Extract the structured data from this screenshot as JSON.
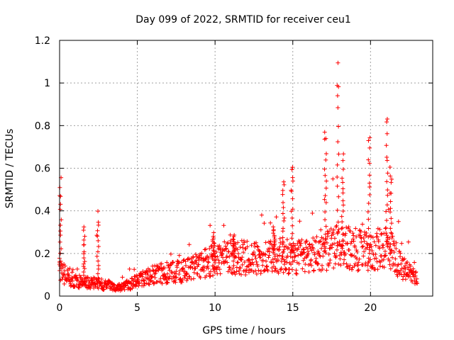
{
  "chart_data": {
    "type": "scatter",
    "title": "Day 099 of 2022, SRMTID for receiver ceu1",
    "xlabel": "GPS time / hours",
    "ylabel": "SRMTID / TECUs",
    "xlim": [
      0,
      24
    ],
    "ylim": [
      0,
      1.2
    ],
    "xticks": [
      0,
      5,
      10,
      15,
      20
    ],
    "xtick_labels": [
      "0",
      "5",
      "10",
      "15",
      "20"
    ],
    "yticks": [
      0,
      0.2,
      0.4,
      0.6,
      0.8,
      1.0,
      1.2
    ],
    "ytick_labels": [
      "0",
      "0.2",
      "0.4",
      "0.6",
      "0.8",
      "1",
      "1.2"
    ],
    "grid": true,
    "marker": "+",
    "series": [
      {
        "name": "SRMTID ceu1",
        "color": "#ff0000",
        "baseline_profile": [
          [
            0.0,
            0.12
          ],
          [
            0.5,
            0.09
          ],
          [
            1.0,
            0.07
          ],
          [
            2.0,
            0.06
          ],
          [
            2.5,
            0.06
          ],
          [
            3.0,
            0.05
          ],
          [
            4.0,
            0.04
          ],
          [
            5.0,
            0.07
          ],
          [
            6.0,
            0.1
          ],
          [
            7.0,
            0.11
          ],
          [
            8.0,
            0.12
          ],
          [
            9.0,
            0.14
          ],
          [
            10.0,
            0.17
          ],
          [
            11.0,
            0.18
          ],
          [
            12.0,
            0.18
          ],
          [
            13.0,
            0.17
          ],
          [
            14.0,
            0.19
          ],
          [
            15.0,
            0.18
          ],
          [
            16.0,
            0.19
          ],
          [
            17.0,
            0.21
          ],
          [
            18.0,
            0.24
          ],
          [
            19.0,
            0.22
          ],
          [
            20.0,
            0.2
          ],
          [
            21.0,
            0.24
          ],
          [
            21.5,
            0.2
          ],
          [
            22.0,
            0.13
          ],
          [
            23.0,
            0.09
          ]
        ],
        "peaks": [
          {
            "x": 0.05,
            "y": 0.56
          },
          {
            "x": 1.6,
            "y": 0.33
          },
          {
            "x": 2.45,
            "y": 0.4
          },
          {
            "x": 9.9,
            "y": 0.3
          },
          {
            "x": 11.2,
            "y": 0.29
          },
          {
            "x": 13.8,
            "y": 0.33
          },
          {
            "x": 14.4,
            "y": 0.55
          },
          {
            "x": 14.95,
            "y": 0.65
          },
          {
            "x": 17.1,
            "y": 0.82
          },
          {
            "x": 17.9,
            "y": 1.12
          },
          {
            "x": 18.2,
            "y": 0.67
          },
          {
            "x": 19.9,
            "y": 0.8
          },
          {
            "x": 21.05,
            "y": 0.86
          },
          {
            "x": 21.3,
            "y": 0.62
          }
        ]
      }
    ]
  }
}
